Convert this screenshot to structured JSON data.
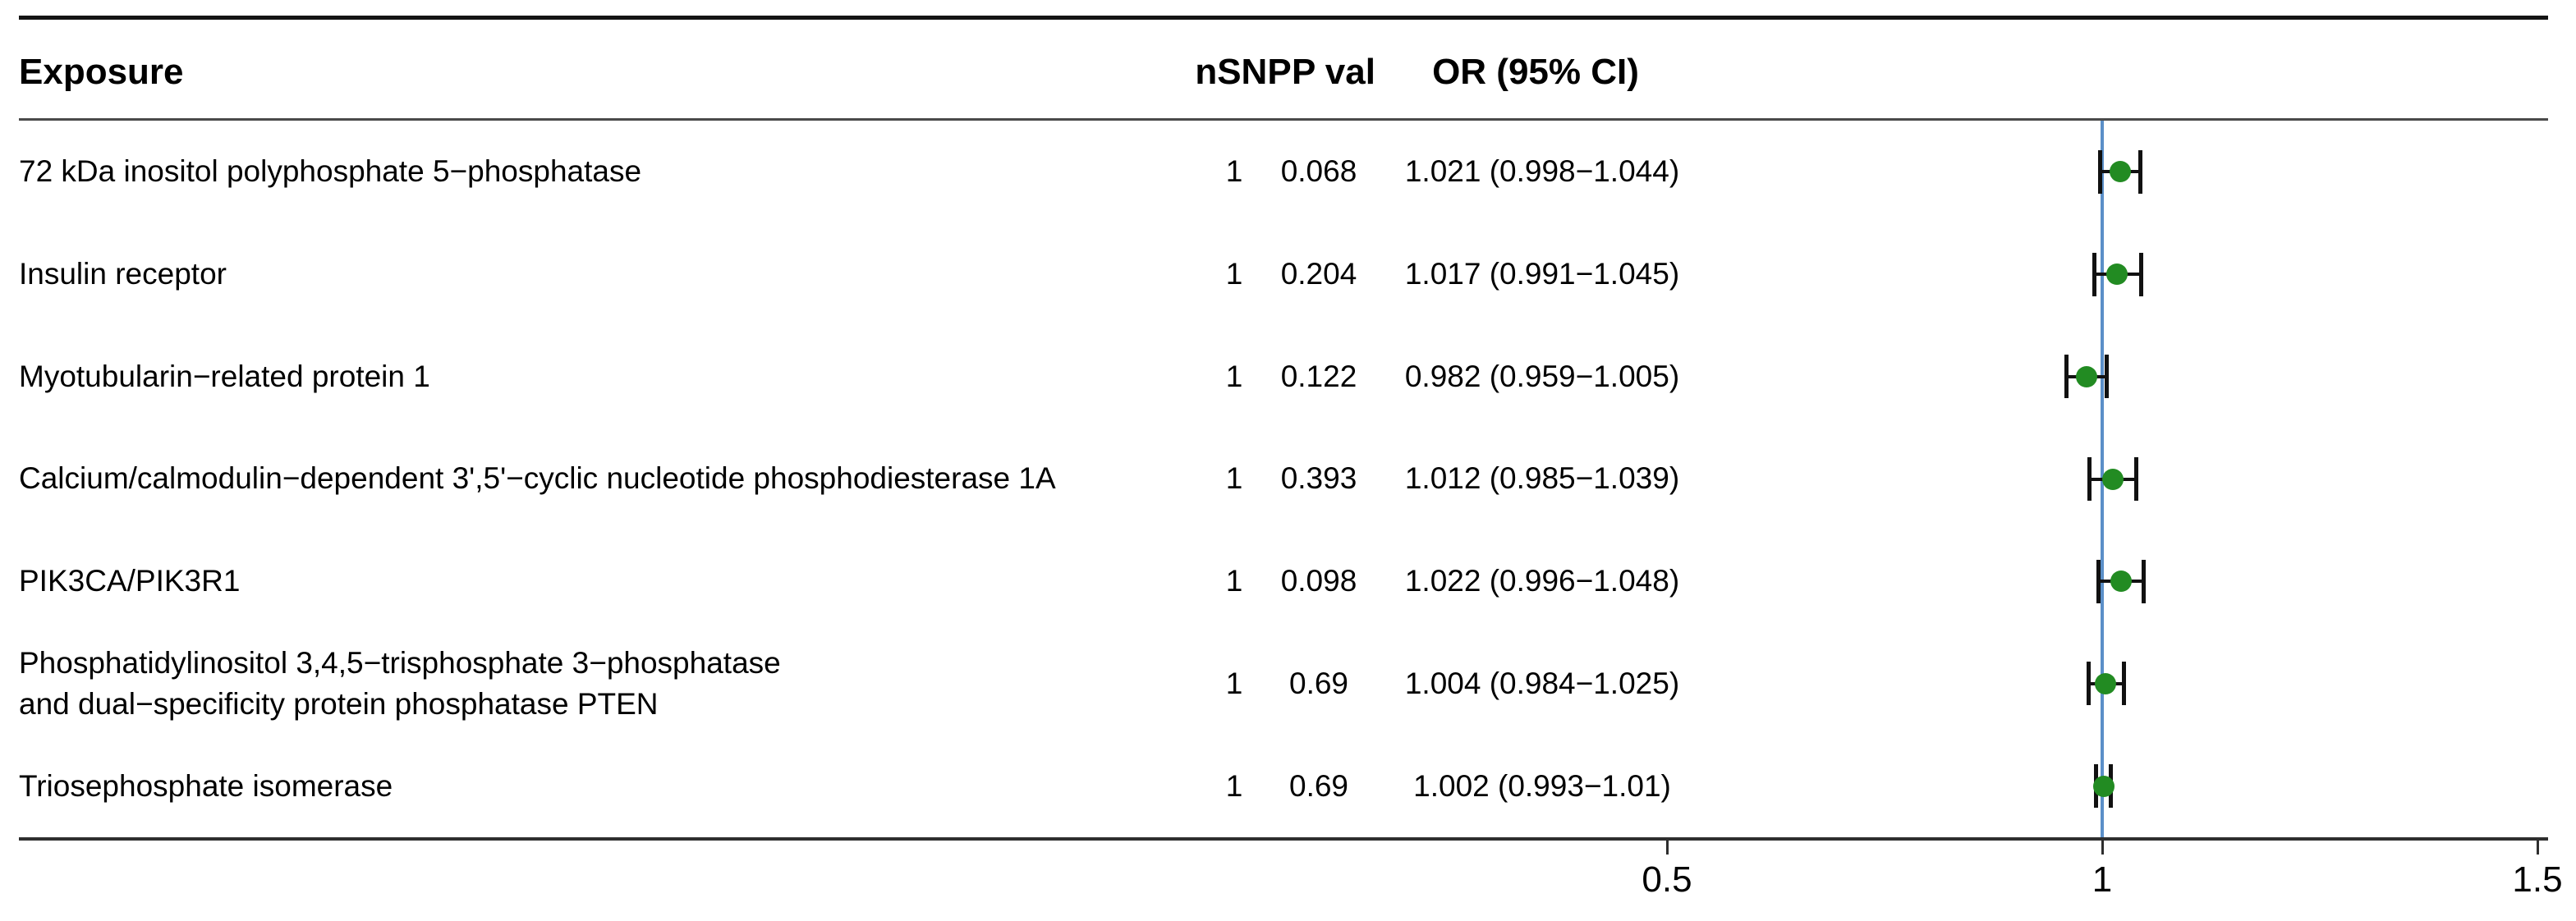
{
  "table": {
    "headers": {
      "exposure": "Exposure",
      "nsnp": "nSNP",
      "pval": "P val",
      "or_ci": "OR (95% CI)"
    }
  },
  "colors": {
    "point": "#228B22",
    "refline": "#5B8FC8",
    "ci": "#111111",
    "text": "#000000",
    "rule_heavy": "#141414",
    "rule_light": "#4a4a4a"
  },
  "chart_data": {
    "type": "scatter",
    "subtype": "forest-plot",
    "xlabel": "",
    "ylabel": "",
    "xlim": [
      0.5,
      1.5
    ],
    "xticks": [
      0.5,
      1,
      1.5
    ],
    "xtick_labels": [
      "0.5",
      "1",
      "1.5"
    ],
    "refline": 1,
    "grid": false,
    "rows": [
      {
        "exposure": "72 kDa inositol polyphosphate 5−phosphatase",
        "nsnp": "1",
        "pval": "0.068",
        "or_ci": "1.021 (0.998−1.044)",
        "or": 1.021,
        "ci_low": 0.998,
        "ci_high": 1.044
      },
      {
        "exposure": "Insulin receptor",
        "nsnp": "1",
        "pval": "0.204",
        "or_ci": "1.017 (0.991−1.045)",
        "or": 1.017,
        "ci_low": 0.991,
        "ci_high": 1.045
      },
      {
        "exposure": "Myotubularin−related protein 1",
        "nsnp": "1",
        "pval": "0.122",
        "or_ci": "0.982 (0.959−1.005)",
        "or": 0.982,
        "ci_low": 0.959,
        "ci_high": 1.005
      },
      {
        "exposure": "Calcium/calmodulin−dependent 3',5'−cyclic nucleotide phosphodiesterase 1A",
        "nsnp": "1",
        "pval": "0.393",
        "or_ci": "1.012 (0.985−1.039)",
        "or": 1.012,
        "ci_low": 0.985,
        "ci_high": 1.039
      },
      {
        "exposure": "PIK3CA/PIK3R1",
        "nsnp": "1",
        "pval": "0.098",
        "or_ci": "1.022 (0.996−1.048)",
        "or": 1.022,
        "ci_low": 0.996,
        "ci_high": 1.048
      },
      {
        "exposure": "Phosphatidylinositol 3,4,5−trisphosphate 3−phosphatase\nand dual−specificity protein phosphatase PTEN",
        "nsnp": "1",
        "pval": "0.69",
        "or_ci": "1.004 (0.984−1.025)",
        "or": 1.004,
        "ci_low": 0.984,
        "ci_high": 1.025
      },
      {
        "exposure": "Triosephosphate isomerase",
        "nsnp": "1",
        "pval": "0.69",
        "or_ci": "1.002 (0.993−1.01)",
        "or": 1.002,
        "ci_low": 0.993,
        "ci_high": 1.01
      }
    ]
  }
}
